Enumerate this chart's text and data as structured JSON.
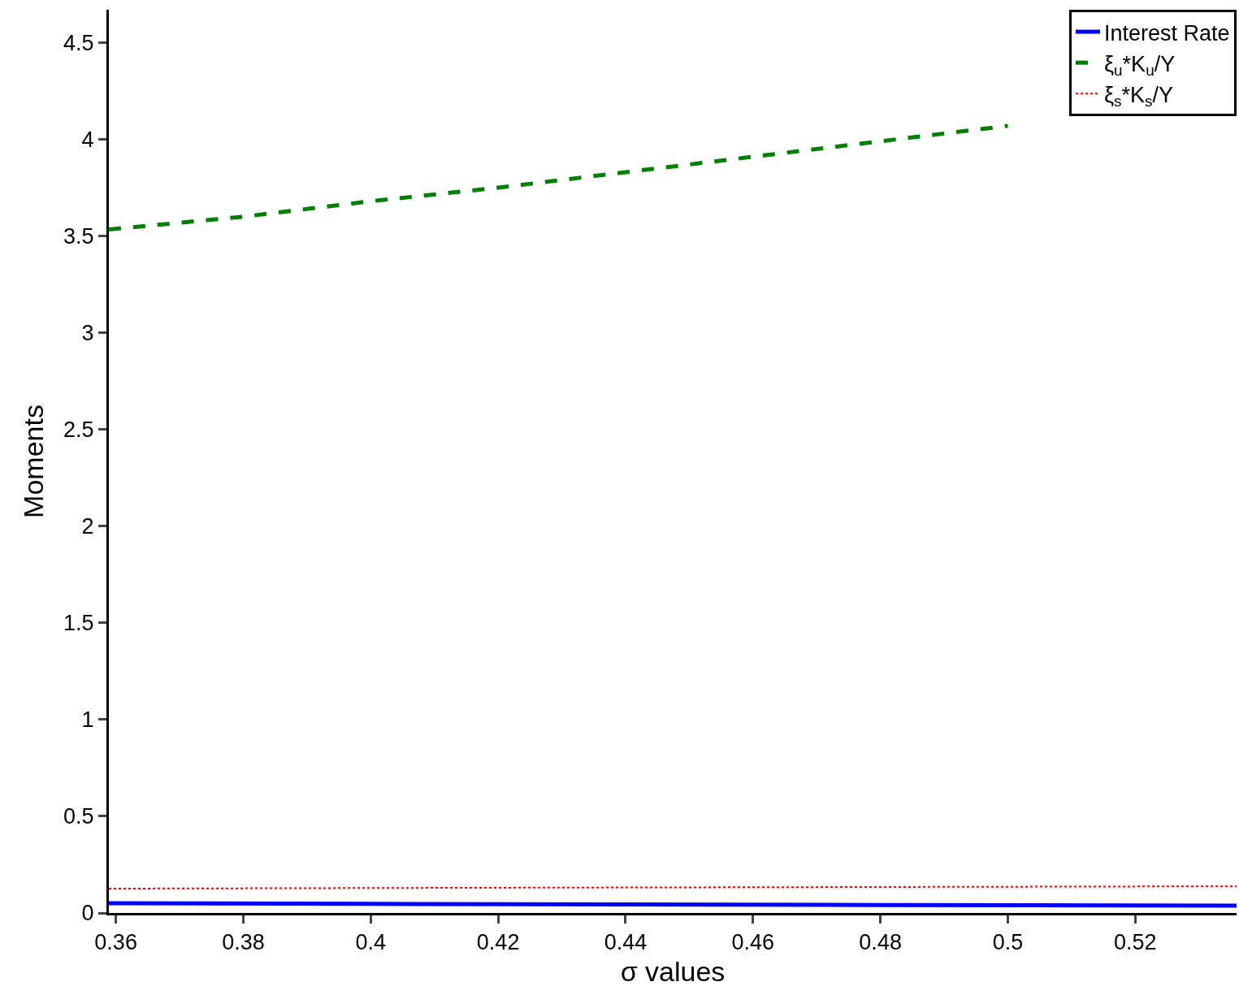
{
  "chart_data": {
    "type": "line",
    "xlabel": "σ values",
    "ylabel": "Moments",
    "xlim": [
      0.3589,
      0.5359
    ],
    "xticks": [
      0.36,
      0.38,
      0.4,
      0.42,
      0.44,
      0.46,
      0.48,
      0.5,
      0.52
    ],
    "ylim": [
      0,
      4.67
    ],
    "yticks": [
      0,
      0.5,
      1,
      1.5,
      2,
      2.5,
      3,
      3.5,
      4,
      4.5
    ],
    "grid": false,
    "legend": "top right",
    "marker": "none",
    "series": [
      {
        "name": "Interest Rate",
        "color": "#0000ff",
        "line_style": "solid",
        "x": [
          0.3589,
          0.4,
          0.44,
          0.48,
          0.5359
        ],
        "values": [
          0.05,
          0.047,
          0.044,
          0.041,
          0.038
        ]
      },
      {
        "name": "ξ$_{u}$*K$_{u}$/Y",
        "color": "#008000",
        "line_style": "dashed",
        "x": [
          0.3589,
          0.38,
          0.4,
          0.42,
          0.44,
          0.46,
          0.48,
          0.5
        ],
        "values": [
          3.534,
          3.6,
          3.68,
          3.75,
          3.83,
          3.91,
          3.99,
          4.07
        ]
      },
      {
        "name": "ξ$_{s}$*K$_{s}$/Y",
        "color": "#ff0000",
        "line_style": "dotted",
        "x": [
          0.3589,
          0.44,
          0.5359
        ],
        "values": [
          0.126,
          0.132,
          0.138
        ]
      }
    ]
  }
}
